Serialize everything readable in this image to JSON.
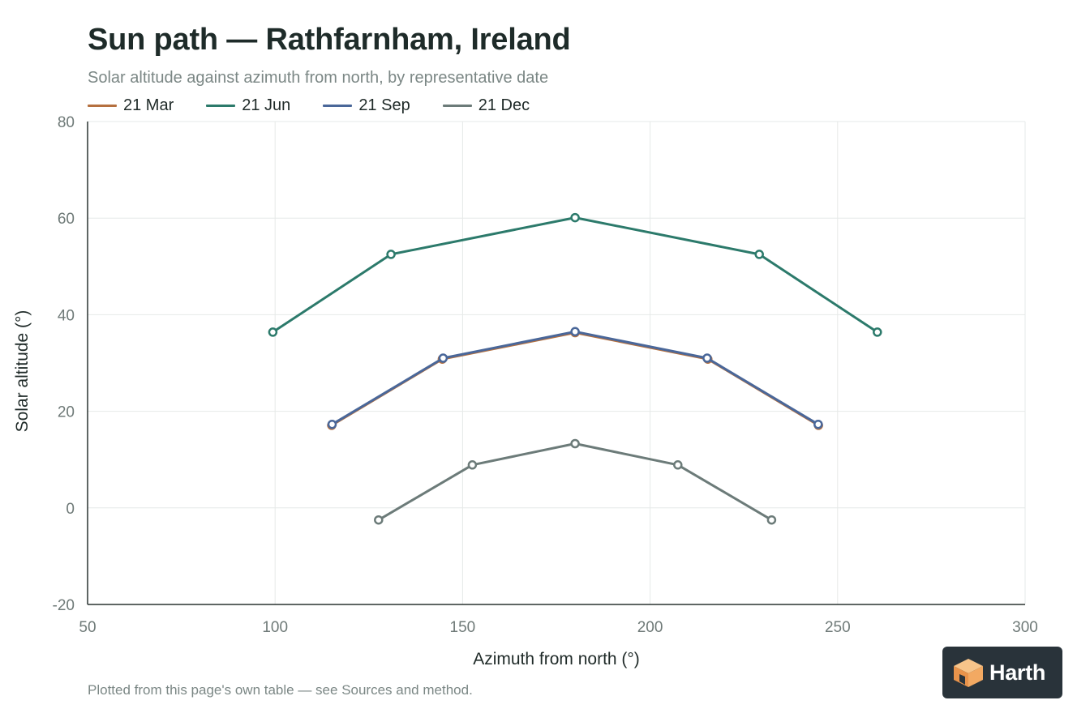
{
  "title": "Sun path — Rathfarnham, Ireland",
  "subtitle": "Solar altitude against azimuth from north, by representative date",
  "footnote": "Plotted from this page's own table — see Sources and method.",
  "logo": {
    "text": "Harth"
  },
  "chart_data": {
    "type": "line",
    "xlabel": "Azimuth from north (°)",
    "ylabel": "Solar altitude (°)",
    "xlim": [
      50,
      300
    ],
    "ylim": [
      -20,
      80
    ],
    "xticks": [
      50,
      100,
      150,
      200,
      250,
      300
    ],
    "yticks": [
      -20,
      0,
      20,
      40,
      60,
      80
    ],
    "grid": true,
    "legend_position": "top-left",
    "series": [
      {
        "name": "21 Mar",
        "color": "#b5703f",
        "points": [
          [
            115.1,
            17.1
          ],
          [
            144.6,
            30.8
          ],
          [
            180,
            36.3
          ],
          [
            215.4,
            30.8
          ],
          [
            244.9,
            17.1
          ]
        ]
      },
      {
        "name": "21 Jun",
        "color": "#2c7a6b",
        "points": [
          [
            99.4,
            36.4
          ],
          [
            130.9,
            52.5
          ],
          [
            180,
            60.1
          ],
          [
            229.1,
            52.5
          ],
          [
            260.6,
            36.4
          ]
        ]
      },
      {
        "name": "21 Sep",
        "color": "#4a6799",
        "points": [
          [
            115.2,
            17.3
          ],
          [
            144.8,
            31.0
          ],
          [
            180,
            36.5
          ],
          [
            215.2,
            31.0
          ],
          [
            244.8,
            17.3
          ]
        ]
      },
      {
        "name": "21 Dec",
        "color": "#6c7b79",
        "points": [
          [
            127.6,
            -2.5
          ],
          [
            152.6,
            8.9
          ],
          [
            180,
            13.3
          ],
          [
            207.4,
            8.9
          ],
          [
            232.4,
            -2.5
          ]
        ]
      }
    ]
  }
}
